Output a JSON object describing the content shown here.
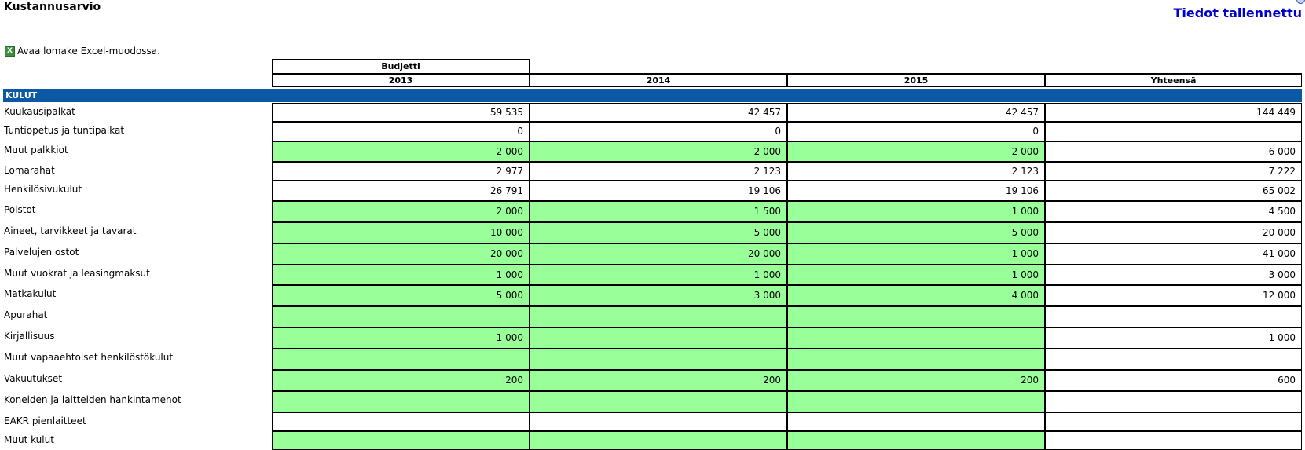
{
  "header": {
    "title": "Kustannusarvio",
    "status": "Tiedot tallennettu"
  },
  "excel_link": "Avaa lomake Excel-muodossa.",
  "table": {
    "group_header": "Budjetti",
    "columns": [
      "2013",
      "2014",
      "2015",
      "Yhteensä"
    ],
    "section": "KULUT",
    "rows": [
      {
        "label": "Kuukausipalkat",
        "values": [
          "59 535",
          "42 457",
          "42 457",
          "144 449"
        ],
        "input": false
      },
      {
        "label": "Tuntiopetus ja tuntipalkat",
        "values": [
          "0",
          "0",
          "0",
          ""
        ],
        "input": false
      },
      {
        "label": "Muut palkkiot",
        "values": [
          "2 000",
          "2 000",
          "2 000",
          "6 000"
        ],
        "input": true
      },
      {
        "label": "Lomarahat",
        "values": [
          "2 977",
          "2 123",
          "2 123",
          "7 222"
        ],
        "input": false
      },
      {
        "label": "Henkilösivukulut",
        "values": [
          "26 791",
          "19 106",
          "19 106",
          "65 002"
        ],
        "input": false
      },
      {
        "label": "Poistot",
        "values": [
          "2 000",
          "1 500",
          "1 000",
          "4 500"
        ],
        "input": true
      },
      {
        "label": "Aineet, tarvikkeet ja tavarat",
        "values": [
          "10 000",
          "5 000",
          "5 000",
          "20 000"
        ],
        "input": true
      },
      {
        "label": "Palvelujen ostot",
        "values": [
          "20 000",
          "20 000",
          "1 000",
          "41 000"
        ],
        "input": true
      },
      {
        "label": "Muut vuokrat ja leasingmaksut",
        "values": [
          "1 000",
          "1 000",
          "1 000",
          "3 000"
        ],
        "input": true
      },
      {
        "label": "Matkakulut",
        "values": [
          "5 000",
          "3 000",
          "4 000",
          "12 000"
        ],
        "input": true
      },
      {
        "label": "Apurahat",
        "values": [
          "",
          "",
          "",
          ""
        ],
        "input": true
      },
      {
        "label": "Kirjallisuus",
        "values": [
          "1 000",
          "",
          "",
          "1 000"
        ],
        "input": true
      },
      {
        "label": "Muut vapaaehtoiset henkilöstökulut",
        "values": [
          "",
          "",
          "",
          ""
        ],
        "input": true
      },
      {
        "label": "Vakuutukset",
        "values": [
          "200",
          "200",
          "200",
          "600"
        ],
        "input": true
      },
      {
        "label": "Koneiden ja laitteiden hankintamenot",
        "values": [
          "",
          "",
          "",
          ""
        ],
        "input": true
      },
      {
        "label": "EAKR pienlaitteet",
        "values": [
          "",
          "",
          "",
          ""
        ],
        "input": false
      },
      {
        "label": "Muut kulut",
        "values": [
          "",
          "",
          "",
          ""
        ],
        "input": true
      }
    ]
  }
}
